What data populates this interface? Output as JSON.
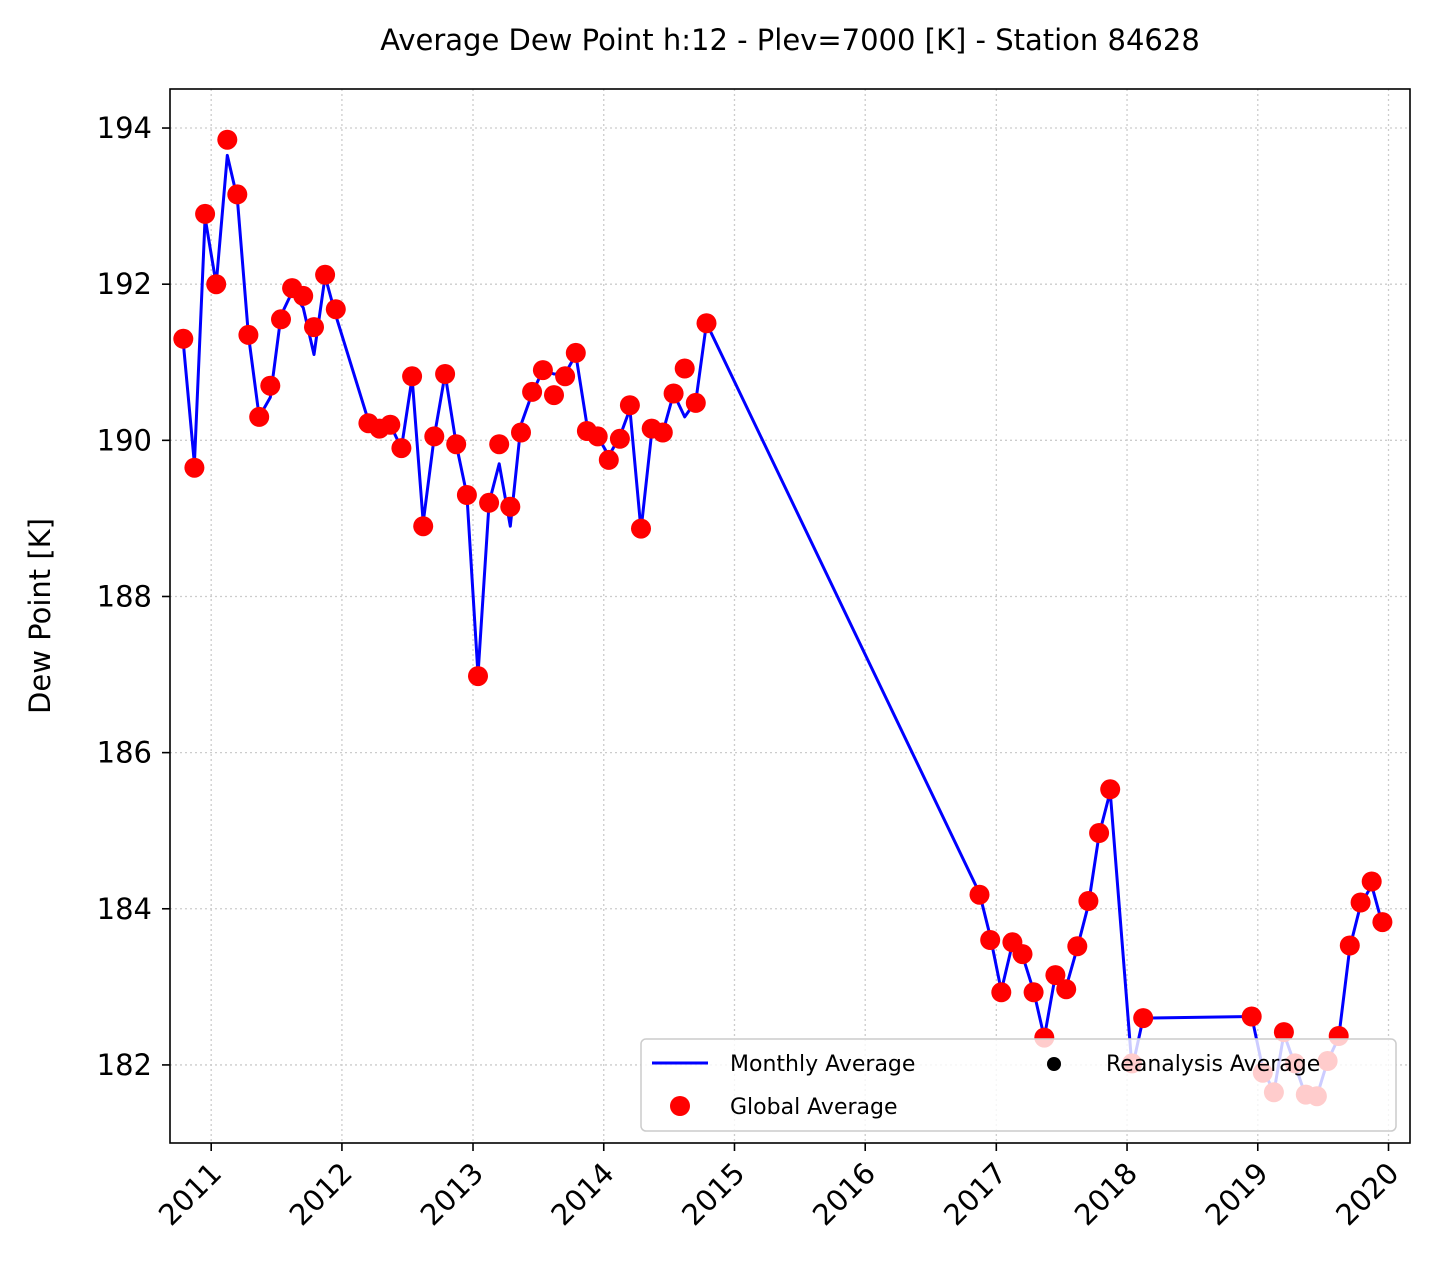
{
  "chart_data": {
    "type": "line",
    "title": "Average Dew Point h:12 - Plev=7000 [K] - Station 84628",
    "xlabel": "",
    "ylabel": "Dew Point [K]",
    "xlim": [
      "2010-09-08",
      "2020-03-01"
    ],
    "ylim": [
      181.0,
      194.5
    ],
    "x_ticks": [
      "2011",
      "2012",
      "2013",
      "2014",
      "2015",
      "2016",
      "2017",
      "2018",
      "2019",
      "2020"
    ],
    "y_ticks": [
      182,
      184,
      186,
      188,
      190,
      192,
      194
    ],
    "grid": true,
    "legend_position": "lower-right",
    "colors": {
      "monthly": "#0000ff",
      "global": "#ff0000",
      "reanalysis": "#000000"
    },
    "series": [
      {
        "name": "Monthly Average",
        "kind": "line",
        "points": [
          [
            "2010-10",
            191.25
          ],
          [
            "2010-11",
            189.7
          ],
          [
            "2010-12",
            192.85
          ],
          [
            "2011-01",
            192.0
          ],
          [
            "2011-02",
            193.65
          ],
          [
            "2011-03",
            193.1
          ],
          [
            "2011-04",
            191.35
          ],
          [
            "2011-05",
            190.3
          ],
          [
            "2011-06",
            190.55
          ],
          [
            "2011-07",
            191.6
          ],
          [
            "2011-08",
            191.9
          ],
          [
            "2011-09",
            191.7
          ],
          [
            "2011-10",
            191.1
          ],
          [
            "2011-11",
            192.1
          ],
          [
            "2011-12",
            191.6
          ],
          [
            "2012-03",
            190.25
          ],
          [
            "2012-04",
            190.15
          ],
          [
            "2012-05",
            190.2
          ],
          [
            "2012-06",
            189.9
          ],
          [
            "2012-07",
            190.8
          ],
          [
            "2012-08",
            188.95
          ],
          [
            "2012-09",
            190.05
          ],
          [
            "2012-10",
            190.85
          ],
          [
            "2012-11",
            189.95
          ],
          [
            "2012-12",
            189.3
          ],
          [
            "2013-01",
            187.0
          ],
          [
            "2013-02",
            189.2
          ],
          [
            "2013-03",
            189.7
          ],
          [
            "2013-04",
            188.9
          ],
          [
            "2013-05",
            190.2
          ],
          [
            "2013-06",
            190.6
          ],
          [
            "2013-07",
            190.9
          ],
          [
            "2013-08",
            190.85
          ],
          [
            "2013-09",
            190.85
          ],
          [
            "2013-10",
            191.1
          ],
          [
            "2013-11",
            190.2
          ],
          [
            "2013-12",
            190.05
          ],
          [
            "2014-01",
            189.8
          ],
          [
            "2014-02",
            190.05
          ],
          [
            "2014-03",
            190.4
          ],
          [
            "2014-04",
            188.85
          ],
          [
            "2014-05",
            190.1
          ],
          [
            "2014-06",
            190.1
          ],
          [
            "2014-07",
            190.6
          ],
          [
            "2014-08",
            190.3
          ],
          [
            "2014-09",
            190.5
          ],
          [
            "2014-10",
            191.5
          ],
          [
            "2016-11",
            184.2
          ],
          [
            "2016-12",
            183.65
          ],
          [
            "2017-01",
            182.95
          ],
          [
            "2017-02",
            183.55
          ],
          [
            "2017-03",
            183.4
          ],
          [
            "2017-04",
            182.95
          ],
          [
            "2017-05",
            182.35
          ],
          [
            "2017-06",
            183.15
          ],
          [
            "2017-07",
            183.0
          ],
          [
            "2017-08",
            183.5
          ],
          [
            "2017-09",
            184.05
          ],
          [
            "2017-10",
            184.95
          ],
          [
            "2017-11",
            185.5
          ],
          [
            "2018-01",
            181.95
          ],
          [
            "2018-02",
            182.6
          ],
          [
            "2018-12",
            182.62
          ],
          [
            "2019-01",
            181.95
          ],
          [
            "2019-02",
            181.65
          ],
          [
            "2019-03",
            182.4
          ],
          [
            "2019-04",
            182.0
          ],
          [
            "2019-05",
            181.6
          ],
          [
            "2019-06",
            181.6
          ],
          [
            "2019-07",
            182.05
          ],
          [
            "2019-08",
            182.35
          ],
          [
            "2019-09",
            183.5
          ],
          [
            "2019-10",
            184.05
          ],
          [
            "2019-11",
            184.3
          ],
          [
            "2019-12",
            183.8
          ]
        ]
      },
      {
        "name": "Global Average",
        "kind": "scatter",
        "points": [
          [
            "2010-10",
            191.3
          ],
          [
            "2010-11",
            189.65
          ],
          [
            "2010-12",
            192.9
          ],
          [
            "2011-01",
            192.0
          ],
          [
            "2011-02",
            193.85
          ],
          [
            "2011-03",
            193.15
          ],
          [
            "2011-04",
            191.35
          ],
          [
            "2011-05",
            190.3
          ],
          [
            "2011-06",
            190.7
          ],
          [
            "2011-07",
            191.55
          ],
          [
            "2011-08",
            191.95
          ],
          [
            "2011-09",
            191.85
          ],
          [
            "2011-10",
            191.45
          ],
          [
            "2011-11",
            192.12
          ],
          [
            "2011-12",
            191.68
          ],
          [
            "2012-03",
            190.22
          ],
          [
            "2012-04",
            190.15
          ],
          [
            "2012-05",
            190.2
          ],
          [
            "2012-06",
            189.9
          ],
          [
            "2012-07",
            190.82
          ],
          [
            "2012-08",
            188.9
          ],
          [
            "2012-09",
            190.05
          ],
          [
            "2012-10",
            190.85
          ],
          [
            "2012-11",
            189.95
          ],
          [
            "2012-12",
            189.3
          ],
          [
            "2013-01",
            186.98
          ],
          [
            "2013-02",
            189.2
          ],
          [
            "2013-03",
            189.95
          ],
          [
            "2013-04",
            189.15
          ],
          [
            "2013-05",
            190.1
          ],
          [
            "2013-06",
            190.62
          ],
          [
            "2013-07",
            190.9
          ],
          [
            "2013-08",
            190.58
          ],
          [
            "2013-09",
            190.82
          ],
          [
            "2013-10",
            191.12
          ],
          [
            "2013-11",
            190.12
          ],
          [
            "2013-12",
            190.05
          ],
          [
            "2014-01",
            189.75
          ],
          [
            "2014-02",
            190.02
          ],
          [
            "2014-03",
            190.45
          ],
          [
            "2014-04",
            188.87
          ],
          [
            "2014-05",
            190.15
          ],
          [
            "2014-06",
            190.1
          ],
          [
            "2014-07",
            190.6
          ],
          [
            "2014-08",
            190.92
          ],
          [
            "2014-09",
            190.48
          ],
          [
            "2014-10",
            191.5
          ],
          [
            "2016-11",
            184.18
          ],
          [
            "2016-12",
            183.6
          ],
          [
            "2017-01",
            182.93
          ],
          [
            "2017-02",
            183.57
          ],
          [
            "2017-03",
            183.42
          ],
          [
            "2017-04",
            182.93
          ],
          [
            "2017-05",
            182.35
          ],
          [
            "2017-06",
            183.15
          ],
          [
            "2017-07",
            182.97
          ],
          [
            "2017-08",
            183.52
          ],
          [
            "2017-09",
            184.1
          ],
          [
            "2017-10",
            184.97
          ],
          [
            "2017-11",
            185.53
          ],
          [
            "2018-01",
            182.02
          ],
          [
            "2018-02",
            182.6
          ],
          [
            "2018-12",
            182.62
          ],
          [
            "2019-01",
            181.9
          ],
          [
            "2019-02",
            181.65
          ],
          [
            "2019-03",
            182.42
          ],
          [
            "2019-04",
            182.02
          ],
          [
            "2019-05",
            181.62
          ],
          [
            "2019-06",
            181.6
          ],
          [
            "2019-07",
            182.05
          ],
          [
            "2019-08",
            182.37
          ],
          [
            "2019-09",
            183.53
          ],
          [
            "2019-10",
            184.08
          ],
          [
            "2019-11",
            184.35
          ],
          [
            "2019-12",
            183.83
          ]
        ]
      },
      {
        "name": "Reanalysis Average",
        "kind": "scatter",
        "points": []
      }
    ]
  }
}
